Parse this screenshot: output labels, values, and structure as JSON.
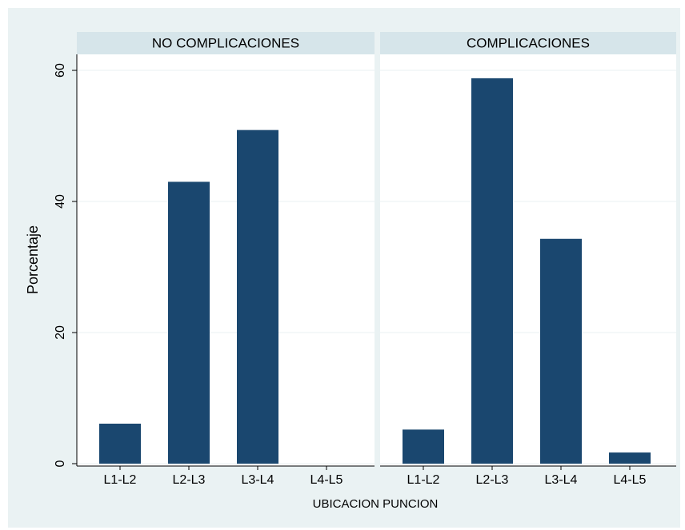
{
  "chart_data": {
    "type": "bar",
    "ylabel": "Porcentaje",
    "xlabel": "UBICACION PUNCION",
    "ylim": [
      0,
      62.2
    ],
    "yticks": [
      0,
      20,
      40,
      60
    ],
    "grid": true,
    "color": "#1a476f",
    "panels": [
      {
        "title": "NO COMPLICACIONES",
        "categories": [
          "L1-L2",
          "L2-L3",
          "L3-L4",
          "L4-L5"
        ],
        "values": [
          6.1,
          43.0,
          50.9,
          0
        ]
      },
      {
        "title": "COMPLICACIONES",
        "categories": [
          "L1-L2",
          "L2-L3",
          "L3-L4",
          "L4-L5"
        ],
        "values": [
          5.2,
          58.8,
          34.3,
          1.7
        ]
      }
    ]
  }
}
